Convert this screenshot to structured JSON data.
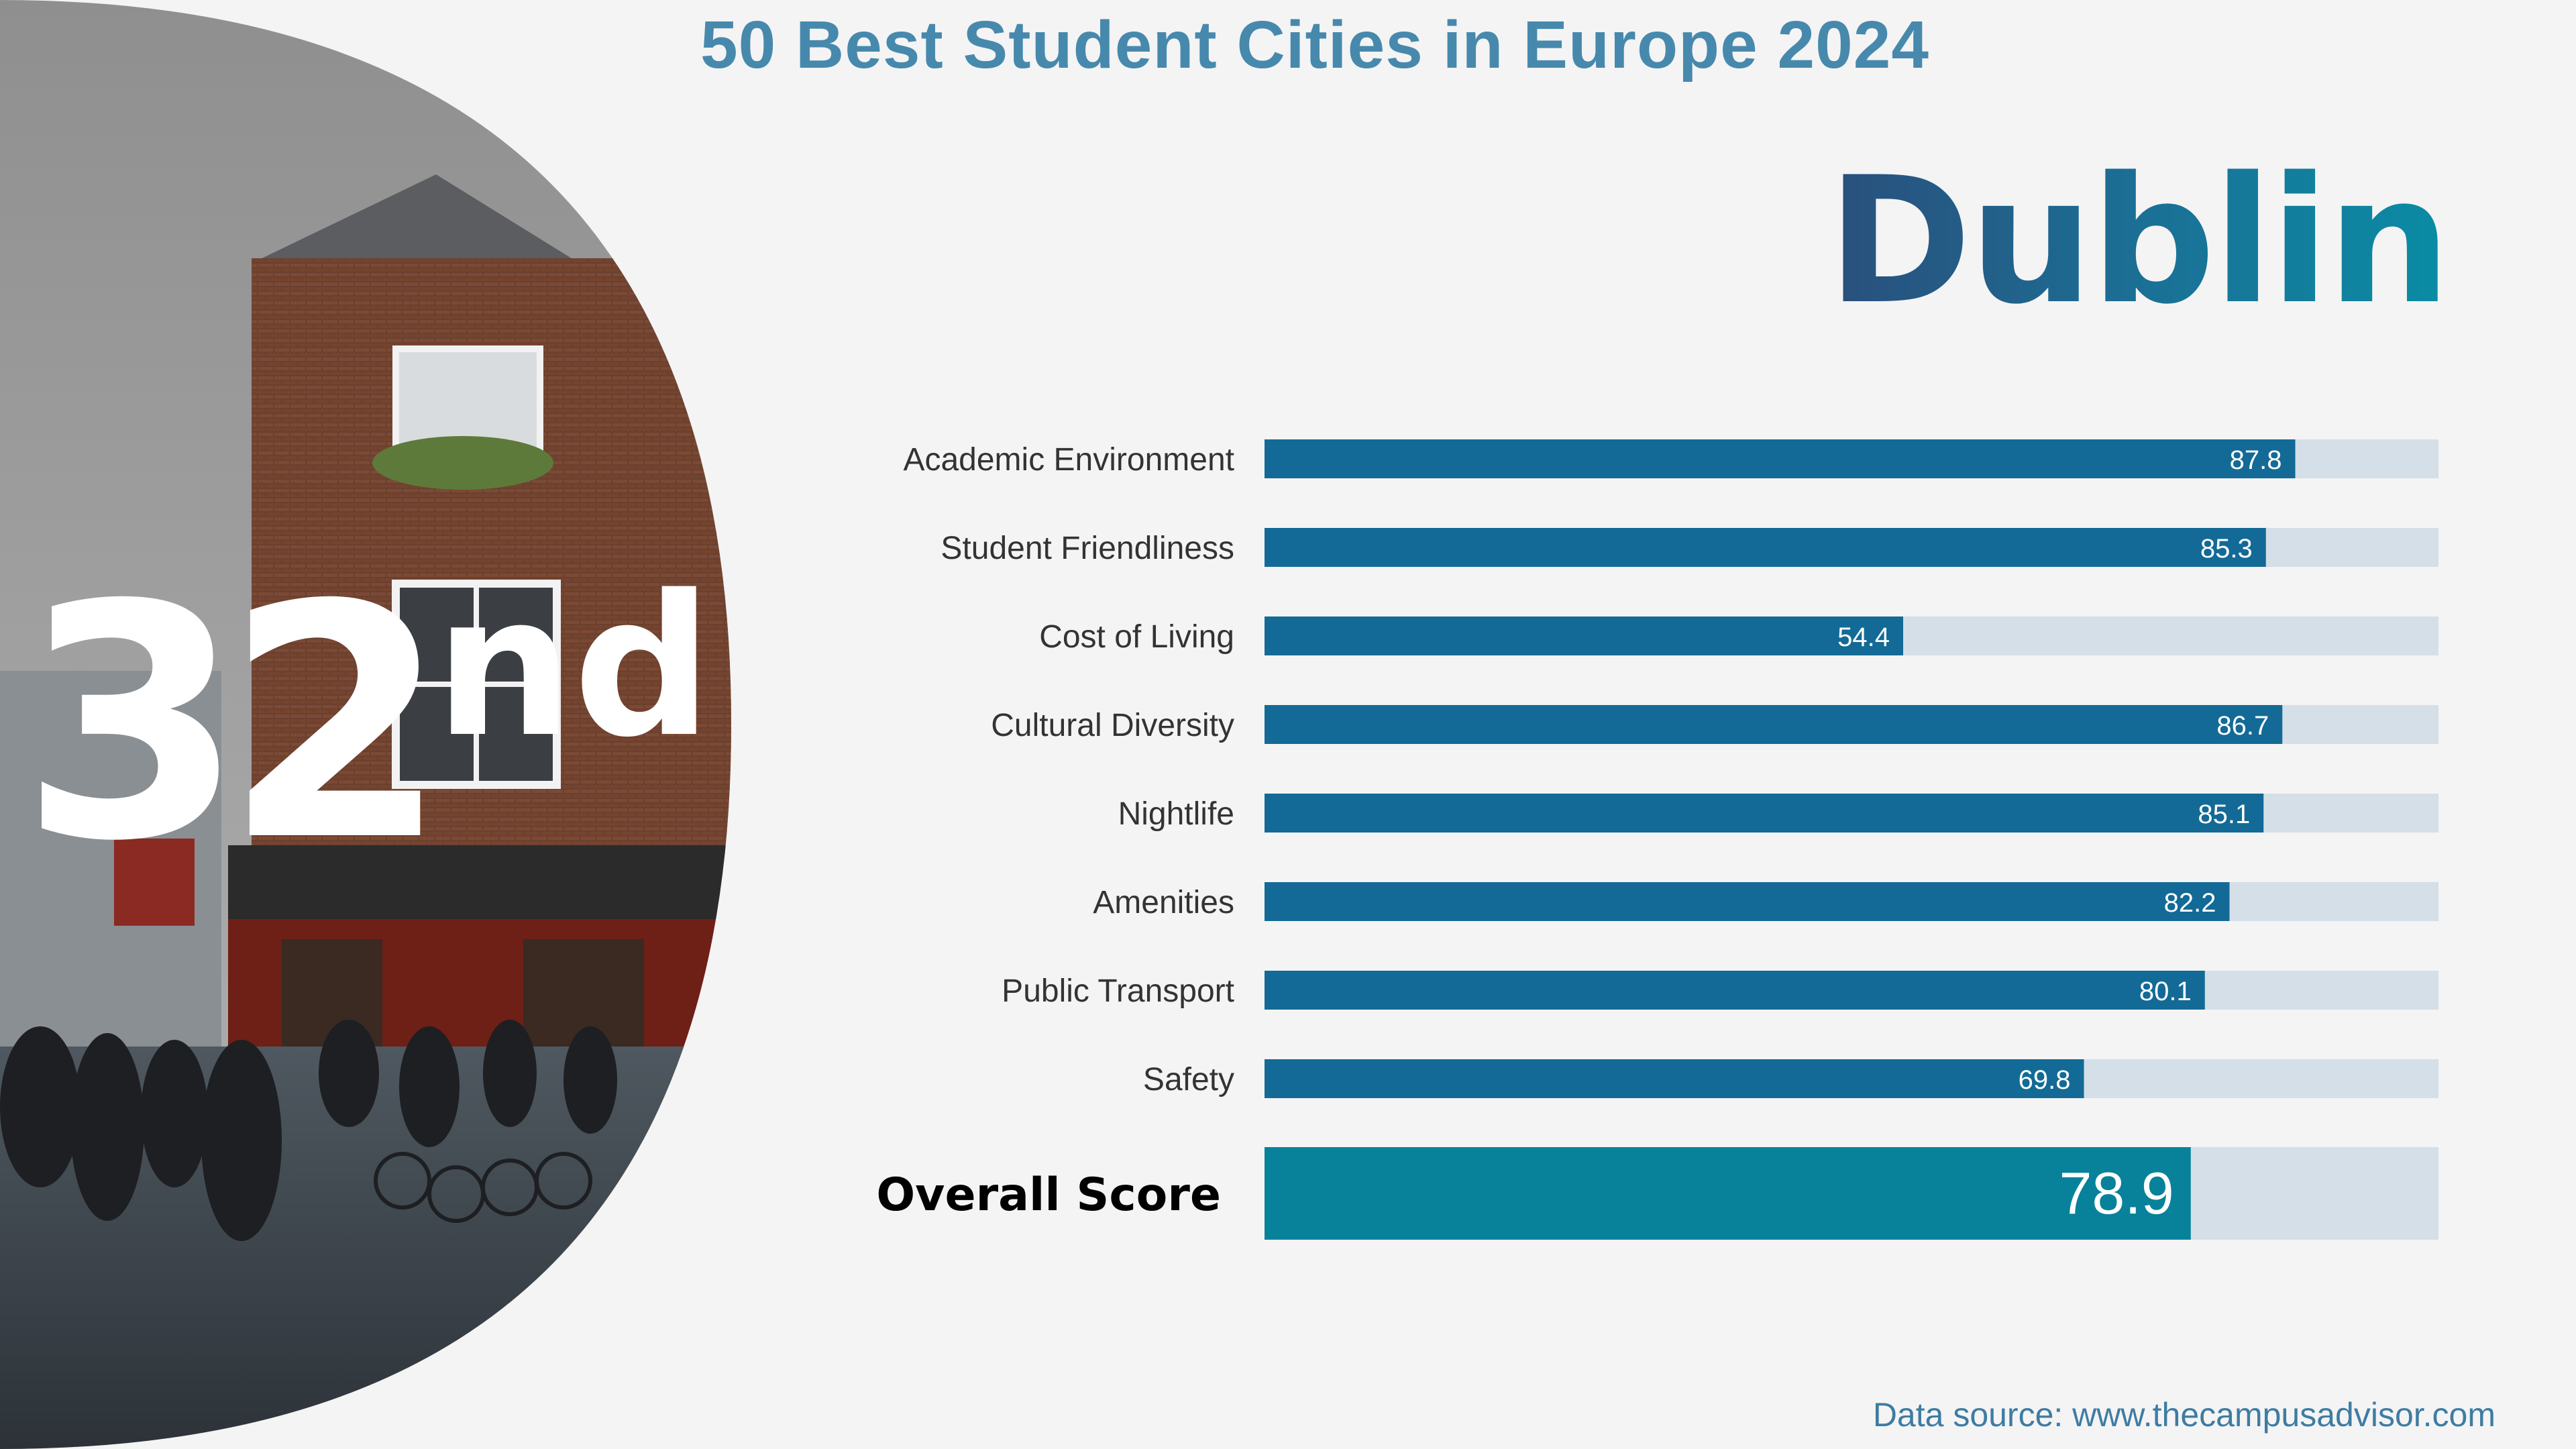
{
  "header": {
    "title": "50 Best Student Cities in Europe 2024"
  },
  "city": {
    "name": "Dublin"
  },
  "rank": {
    "number": "32",
    "suffix": "nd"
  },
  "chart_data": {
    "type": "bar",
    "orientation": "horizontal",
    "categories": [
      "Academic Environment",
      "Student Friendliness",
      "Cost of Living",
      "Cultural Diversity",
      "Nightlife",
      "Amenities",
      "Public Transport",
      "Safety"
    ],
    "values": [
      87.8,
      85.3,
      54.4,
      86.7,
      85.1,
      82.2,
      80.1,
      69.8
    ],
    "value_labels": [
      "87.8",
      "85.3",
      "54.4",
      "86.7",
      "85.1",
      "82.2",
      "80.1",
      "69.8"
    ],
    "xlim": [
      0,
      100
    ],
    "overall": {
      "label": "Overall Score",
      "value": 78.9,
      "value_label": "78.9"
    },
    "colors": {
      "bar": "#136a96",
      "track": "#d4dfe7",
      "overall_bar": "#07829a",
      "label": "#333333"
    }
  },
  "footer": {
    "source": "Data source: www.thecampusadvisor.com"
  },
  "photo": {
    "description_icon": "street-photo"
  }
}
